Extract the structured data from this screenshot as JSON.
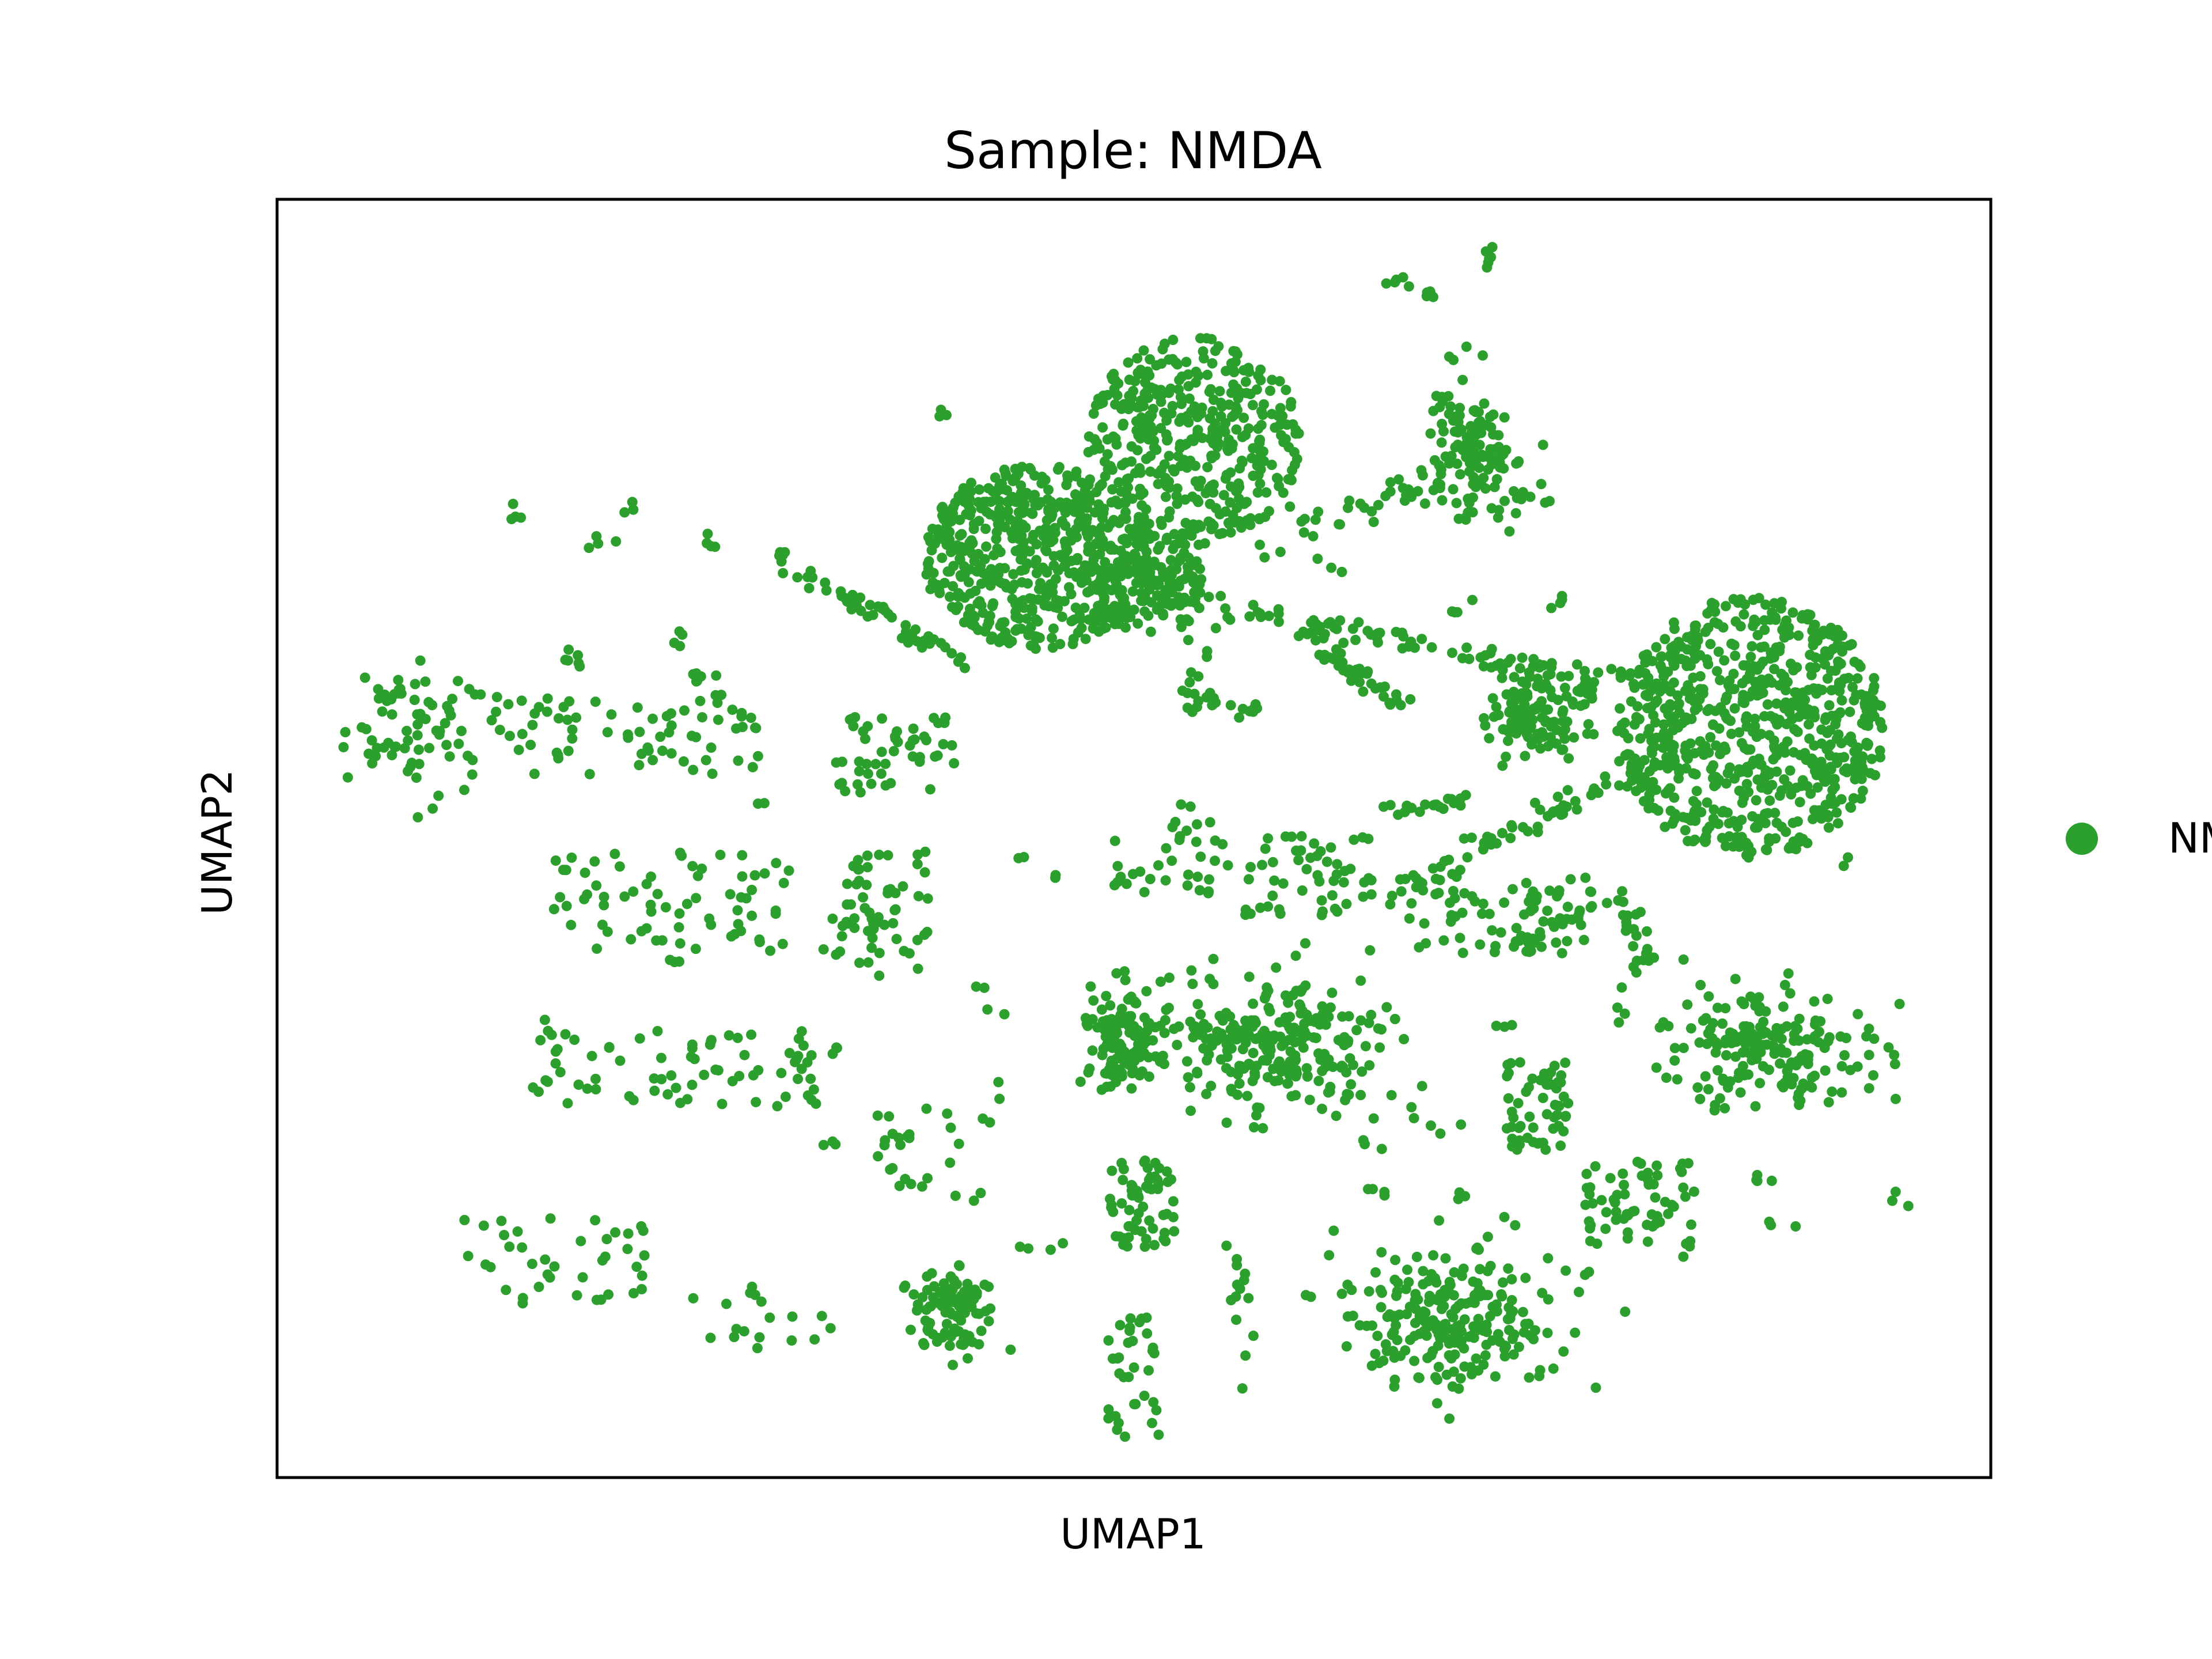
{
  "chart_data": {
    "type": "scatter",
    "title": "Sample: NMDA",
    "xlabel": "UMAP1",
    "ylabel": "UMAP2",
    "xticks": [],
    "yticks": [],
    "xlim": [
      0,
      100
    ],
    "ylim": [
      0,
      100
    ],
    "grid": false,
    "legend": {
      "placement": "right",
      "entries": [
        {
          "label": "NMDA",
          "color": "#2ca02c"
        }
      ]
    },
    "series": [
      {
        "name": "NMDA",
        "color": "#2ca02c",
        "clusters": [
          {
            "cx": 86,
            "cy": 58.7,
            "rx": 7.8,
            "ry": 10.2,
            "n": 700,
            "kind": "dense"
          },
          {
            "cx": 44.5,
            "cy": 72,
            "rx": 6.8,
            "ry": 7.2,
            "n": 550,
            "kind": "dense"
          },
          {
            "cx": 53.5,
            "cy": 81,
            "rx": 6.2,
            "ry": 8.2,
            "n": 420,
            "kind": "dense"
          },
          {
            "cx": 51,
            "cy": 69.5,
            "rx": 3.5,
            "ry": 3.5,
            "n": 110,
            "kind": "dense"
          },
          {
            "cx": 69.7,
            "cy": 81,
            "rx": 2.6,
            "ry": 4.8,
            "n": 110,
            "kind": "medium"
          },
          {
            "cx": 73.5,
            "cy": 59.5,
            "rx": 3.0,
            "ry": 3.0,
            "n": 120,
            "kind": "medium"
          },
          {
            "cx": 58.5,
            "cy": 34,
            "rx": 6.3,
            "ry": 5.5,
            "n": 260,
            "kind": "medium"
          },
          {
            "cx": 49.5,
            "cy": 34,
            "rx": 2.6,
            "ry": 4.5,
            "n": 120,
            "kind": "medium"
          },
          {
            "cx": 87,
            "cy": 33.5,
            "rx": 6.3,
            "ry": 4.3,
            "n": 190,
            "kind": "medium"
          },
          {
            "cx": 68.5,
            "cy": 12.5,
            "rx": 6.5,
            "ry": 5.5,
            "n": 240,
            "kind": "medium"
          },
          {
            "cx": 39.5,
            "cy": 13,
            "rx": 2.5,
            "ry": 3.8,
            "n": 100,
            "kind": "medium"
          },
          {
            "cx": 50.5,
            "cy": 21.5,
            "rx": 1.9,
            "ry": 3.5,
            "n": 60,
            "kind": "sparse"
          },
          {
            "cx": 79.5,
            "cy": 21.5,
            "rx": 3.2,
            "ry": 3.5,
            "n": 60,
            "kind": "sparse"
          },
          {
            "cx": 73.5,
            "cy": 29,
            "rx": 1.9,
            "ry": 3.5,
            "n": 55,
            "kind": "sparse"
          },
          {
            "cx": 71.5,
            "cy": 44,
            "rx": 5.5,
            "ry": 3.0,
            "n": 70,
            "kind": "sparse"
          },
          {
            "cx": 60.5,
            "cy": 47,
            "rx": 4.0,
            "ry": 3.5,
            "n": 50,
            "kind": "sparse"
          },
          {
            "cx": 52,
            "cy": 48,
            "rx": 3.5,
            "ry": 3.0,
            "n": 30,
            "kind": "sparse"
          },
          {
            "cx": 35.5,
            "cy": 45.5,
            "rx": 2.5,
            "ry": 3.5,
            "n": 45,
            "kind": "sparse"
          },
          {
            "cx": 23,
            "cy": 45,
            "rx": 7.0,
            "ry": 4.0,
            "n": 70,
            "kind": "sparse"
          },
          {
            "cx": 20.5,
            "cy": 58,
            "rx": 8.0,
            "ry": 3.0,
            "n": 70,
            "kind": "sparse"
          },
          {
            "cx": 8,
            "cy": 58.5,
            "rx": 3.5,
            "ry": 4.5,
            "n": 75,
            "kind": "medium"
          },
          {
            "cx": 23,
            "cy": 32,
            "rx": 8.5,
            "ry": 3.0,
            "n": 70,
            "kind": "sparse"
          },
          {
            "cx": 16,
            "cy": 17,
            "rx": 5.5,
            "ry": 3.5,
            "n": 40,
            "kind": "sparse"
          },
          {
            "cx": 28,
            "cy": 12.5,
            "rx": 5.0,
            "ry": 2.5,
            "n": 18,
            "kind": "sparse"
          },
          {
            "cx": 50,
            "cy": 8,
            "rx": 1.5,
            "ry": 5.0,
            "n": 35,
            "kind": "sparse"
          },
          {
            "cx": 70.5,
            "cy": 76,
            "rx": 4.0,
            "ry": 1.5,
            "n": 25,
            "kind": "sparse"
          },
          {
            "cx": 36,
            "cy": 56.5,
            "rx": 3.5,
            "ry": 3.0,
            "n": 50,
            "kind": "sparse"
          },
          {
            "cx": 37.5,
            "cy": 25.5,
            "rx": 2.5,
            "ry": 3.5,
            "n": 22,
            "kind": "sparse"
          },
          {
            "cx": 34.5,
            "cy": 41.5,
            "rx": 3.0,
            "ry": 2.5,
            "n": 16,
            "kind": "sparse"
          }
        ],
        "strands": [
          {
            "from": [
              29,
              72
            ],
            "to": [
              40,
              64
            ],
            "n": 55,
            "spread": 0.8
          },
          {
            "from": [
              44,
              73
            ],
            "to": [
              63,
              65
            ],
            "n": 60,
            "spread": 1.2
          },
          {
            "from": [
              60,
              67
            ],
            "to": [
              79,
              62
            ],
            "n": 60,
            "spread": 0.9
          },
          {
            "from": [
              60,
              74
            ],
            "to": [
              72,
              80
            ],
            "n": 40,
            "spread": 1.2
          },
          {
            "from": [
              61,
              65
            ],
            "to": [
              66,
              60
            ],
            "n": 35,
            "spread": 0.8
          },
          {
            "from": [
              64,
              45
            ],
            "to": [
              80,
              56
            ],
            "n": 60,
            "spread": 1.0
          },
          {
            "from": [
              77,
              62
            ],
            "to": [
              76,
              61
            ],
            "n": 10,
            "spread": 0.6
          },
          {
            "from": [
              78,
              46
            ],
            "to": [
              80,
              40
            ],
            "n": 25,
            "spread": 0.8
          },
          {
            "from": [
              64,
              52
            ],
            "to": [
              70,
              53
            ],
            "n": 20,
            "spread": 0.6
          },
          {
            "from": [
              54,
              65
            ],
            "to": [
              53,
              60
            ],
            "n": 12,
            "spread": 0.8
          },
          {
            "from": [
              53,
              61
            ],
            "to": [
              57,
              60
            ],
            "n": 15,
            "spread": 0.6
          },
          {
            "from": [
              56,
              16
            ],
            "to": [
              57,
              4
            ],
            "n": 12,
            "spread": 1.0
          },
          {
            "from": [
              71,
              41
            ],
            "to": [
              76,
              44
            ],
            "n": 20,
            "spread": 0.6
          }
        ],
        "islands": [
          [
            65.5,
            93.5,
            5
          ],
          [
            67.5,
            92.5,
            4
          ],
          [
            70.5,
            95.5,
            6
          ],
          [
            39.5,
            83.5,
            3
          ],
          [
            14,
            75.5,
            4
          ],
          [
            18.5,
            73,
            4
          ],
          [
            25.5,
            73,
            4
          ],
          [
            20.5,
            76,
            3
          ],
          [
            23.5,
            66,
            4
          ],
          [
            24.5,
            62.5,
            4
          ],
          [
            17,
            64,
            6
          ],
          [
            26,
            62,
            4
          ],
          [
            69,
            68,
            4
          ],
          [
            74.5,
            68.5,
            4
          ],
          [
            73.5,
            63,
            4
          ],
          [
            52.5,
            52.5,
            3
          ],
          [
            54,
            51,
            3
          ],
          [
            43,
            49,
            2
          ],
          [
            45,
            47.5,
            2
          ],
          [
            57.5,
            27.5,
            3
          ],
          [
            63.5,
            26,
            3
          ],
          [
            56,
            17.5,
            2
          ],
          [
            72.5,
            26,
            3
          ],
          [
            79.5,
            20.5,
            3
          ],
          [
            86.5,
            23.5,
            4
          ],
          [
            87.5,
            20,
            3
          ],
          [
            15.5,
            35,
            3
          ],
          [
            41,
            38.5,
            2
          ],
          [
            42,
            36.5,
            2
          ],
          [
            23,
            40.5,
            3
          ],
          [
            29,
            53,
            2
          ],
          [
            46,
            18.5,
            2
          ],
          [
            62,
            46.5,
            3
          ],
          [
            68.5,
            27,
            3
          ],
          [
            55,
            31,
            2
          ],
          [
            30.5,
            32.5,
            3
          ],
          [
            33,
            33.5,
            3
          ],
          [
            64,
            22,
            3
          ],
          [
            69,
            21.5,
            3
          ],
          [
            71.5,
            20,
            2
          ],
          [
            72,
            35.5,
            3
          ],
          [
            75,
            31,
            2
          ],
          [
            91.5,
            47.5,
            2
          ],
          [
            95,
            21.5,
            3
          ],
          [
            82.5,
            18,
            2
          ],
          [
            83.5,
            29,
            2
          ],
          [
            78.5,
            36,
            2
          ],
          [
            42,
            30,
            2
          ],
          [
            41.5,
            28,
            2
          ],
          [
            61.5,
            71.5,
            3
          ],
          [
            58,
            72.5,
            3
          ],
          [
            75.5,
            52.5,
            3
          ],
          [
            44,
            18,
            2
          ],
          [
            40.5,
            22,
            2
          ],
          [
            37,
            22.5,
            2
          ],
          [
            66.5,
            28.5,
            2
          ],
          [
            32.5,
            26.5,
            3
          ]
        ]
      }
    ]
  }
}
